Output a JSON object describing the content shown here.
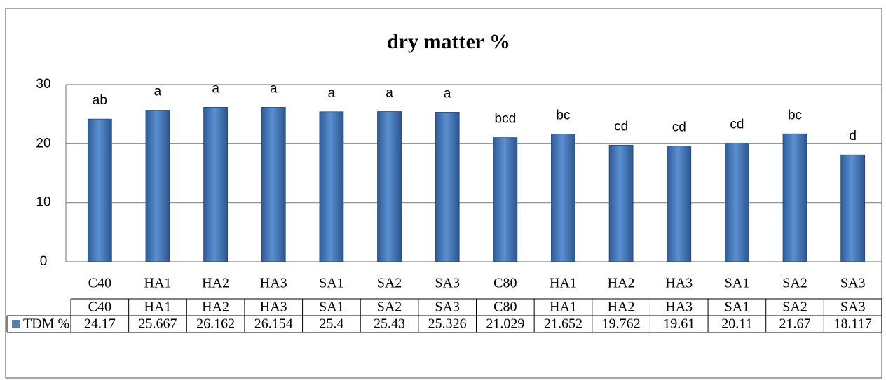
{
  "chart_data": {
    "type": "bar",
    "title": "dry matter %",
    "categories": [
      "C40",
      "HA1",
      "HA2",
      "HA3",
      "SA1",
      "SA2",
      "SA3",
      "C80",
      "HA1",
      "HA2",
      "HA3",
      "SA1",
      "SA2",
      "SA3"
    ],
    "series": [
      {
        "name": "TDM %",
        "color": "#4f81bd",
        "values": [
          24.17,
          25.667,
          26.162,
          26.154,
          25.4,
          25.43,
          25.326,
          21.029,
          21.652,
          19.762,
          19.61,
          20.11,
          21.67,
          18.117
        ]
      }
    ],
    "annotations": [
      "ab",
      "a",
      "a",
      "a",
      "a",
      "a",
      "a",
      "bcd",
      "bc",
      "cd",
      "cd",
      "cd",
      "bc",
      "d"
    ],
    "ylim": [
      0,
      30
    ],
    "yticks": [
      0,
      10,
      20,
      30
    ],
    "grid": true,
    "data_table": true
  }
}
